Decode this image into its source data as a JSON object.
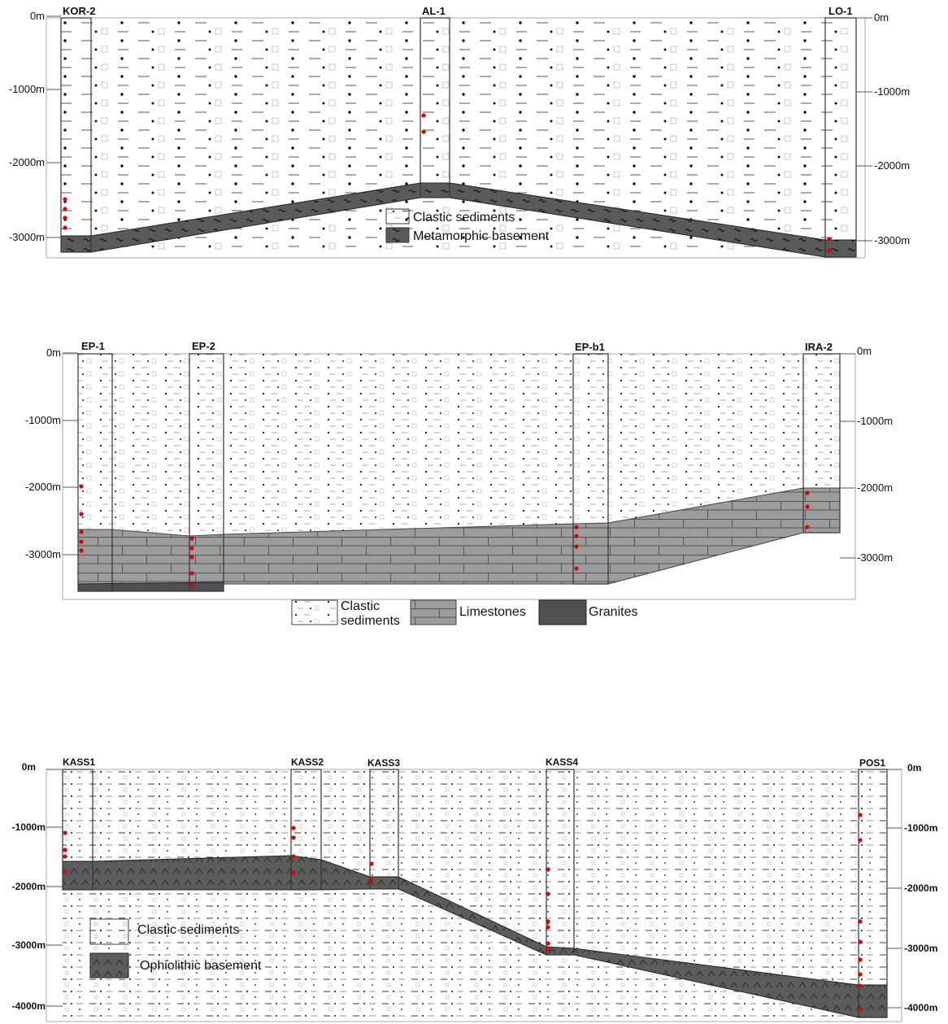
{
  "panel1": {
    "wells": [
      "KOR-2",
      "AL-1",
      "LO-1"
    ],
    "depths": [
      "0m",
      "-1000m",
      "-2000m",
      "-3000m"
    ],
    "legend": [
      "Clastic sediments",
      "Metamorphic basement"
    ]
  },
  "panel2": {
    "wells": [
      "EP-1",
      "EP-2",
      "EP-b1",
      "IRA-2"
    ],
    "depths": [
      "0m",
      "-1000m",
      "-2000m",
      "-3000m"
    ],
    "legend": [
      "Clastic",
      "sediments",
      "Limestones",
      "Granites"
    ]
  },
  "panel3": {
    "wells": [
      "KASS1",
      "KASS2",
      "KASS3",
      "KASS4",
      "POS1"
    ],
    "depths": [
      "0m",
      "-1000m",
      "-2000m",
      "-3000m",
      "-4000m"
    ],
    "legend": [
      "Clastic sediments",
      "Ophiolithic basement"
    ]
  },
  "colors": {
    "basement_dark": "#5a5a5a",
    "limestone": "#9c9c9c",
    "granite": "#505050",
    "sample_marker": "#e00000"
  }
}
